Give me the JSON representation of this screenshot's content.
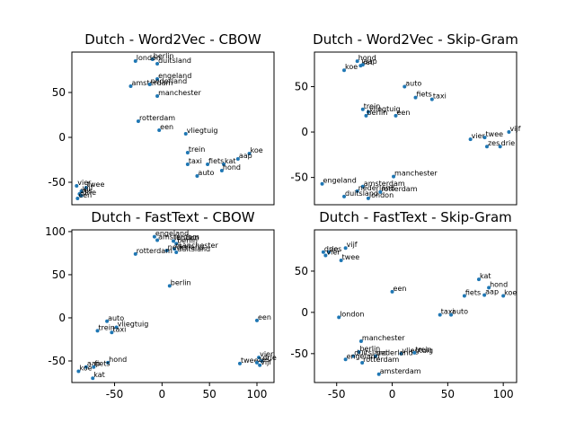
{
  "chart_data": [
    {
      "type": "scatter",
      "title": "Dutch - Word2Vec - CBOW",
      "xlabel": "",
      "ylabel": "",
      "xlim": [
        -95,
        118
      ],
      "ylim": [
        -75,
        95
      ],
      "xticks": [],
      "yticks": [
        50,
        0,
        -50
      ],
      "color": "#1f77b4",
      "points": [
        {
          "label": "berlin",
          "x": -10,
          "y": 87
        },
        {
          "label": "london",
          "x": -28,
          "y": 85
        },
        {
          "label": "duitsland",
          "x": -5,
          "y": 82
        },
        {
          "label": "engeland",
          "x": -5,
          "y": 65
        },
        {
          "label": "amsterdam",
          "x": -33,
          "y": 57
        },
        {
          "label": "nederland",
          "x": -13,
          "y": 59
        },
        {
          "label": "manchester",
          "x": -5,
          "y": 46
        },
        {
          "label": "rotterdam",
          "x": -25,
          "y": 18
        },
        {
          "label": "een",
          "x": -3,
          "y": 8
        },
        {
          "label": "vliegtuig",
          "x": 25,
          "y": 4
        },
        {
          "label": "trein",
          "x": 27,
          "y": -17
        },
        {
          "label": "koe",
          "x": 92,
          "y": -18
        },
        {
          "label": "aap",
          "x": 80,
          "y": -24
        },
        {
          "label": "taxi",
          "x": 27,
          "y": -30
        },
        {
          "label": "fiets",
          "x": 48,
          "y": -30
        },
        {
          "label": "kat",
          "x": 65,
          "y": -30
        },
        {
          "label": "hond",
          "x": 63,
          "y": -37
        },
        {
          "label": "auto",
          "x": 37,
          "y": -43
        },
        {
          "label": "vier",
          "x": -90,
          "y": -54
        },
        {
          "label": "twee",
          "x": -80,
          "y": -56
        },
        {
          "label": "vijf",
          "x": -85,
          "y": -60
        },
        {
          "label": "zes",
          "x": -87,
          "y": -63
        },
        {
          "label": "drie",
          "x": -85,
          "y": -65
        },
        {
          "label": "een2",
          "x": -89,
          "y": -68
        }
      ]
    },
    {
      "type": "scatter",
      "title": "Dutch - Word2Vec - Skip-Gram",
      "xlabel": "",
      "ylabel": "",
      "xlim": [
        -72,
        112
      ],
      "ylim": [
        -80,
        88
      ],
      "xticks": [],
      "yticks": [
        50,
        0,
        -50
      ],
      "color": "#1f77b4",
      "points": [
        {
          "label": "hond",
          "x": -33,
          "y": 78
        },
        {
          "label": "kat",
          "x": -30,
          "y": 73
        },
        {
          "label": "aap",
          "x": -28,
          "y": 74
        },
        {
          "label": "koe",
          "x": -45,
          "y": 68
        },
        {
          "label": "auto",
          "x": 10,
          "y": 50
        },
        {
          "label": "fiets",
          "x": 20,
          "y": 38
        },
        {
          "label": "taxi",
          "x": 35,
          "y": 36
        },
        {
          "label": "trein",
          "x": -28,
          "y": 25
        },
        {
          "label": "vliegtuig",
          "x": -23,
          "y": 22
        },
        {
          "label": "berlin",
          "x": -25,
          "y": 18
        },
        {
          "label": "een",
          "x": 2,
          "y": 18
        },
        {
          "label": "vijf",
          "x": 105,
          "y": 0
        },
        {
          "label": "vier",
          "x": 70,
          "y": -8
        },
        {
          "label": "twee",
          "x": 83,
          "y": -6
        },
        {
          "label": "zes",
          "x": 85,
          "y": -16
        },
        {
          "label": "drie",
          "x": 97,
          "y": -16
        },
        {
          "label": "manchester",
          "x": 0,
          "y": -49
        },
        {
          "label": "engeland",
          "x": -65,
          "y": -57
        },
        {
          "label": "amsterdam",
          "x": -28,
          "y": -60
        },
        {
          "label": "nederland",
          "x": -33,
          "y": -65
        },
        {
          "label": "rotterdam",
          "x": -12,
          "y": -66
        },
        {
          "label": "duitsland",
          "x": -45,
          "y": -71
        },
        {
          "label": "london",
          "x": -23,
          "y": -73
        }
      ]
    },
    {
      "type": "scatter",
      "title": "Dutch - FastText - CBOW",
      "xlabel": "",
      "ylabel": "",
      "xlim": [
        -95,
        118
      ],
      "ylim": [
        -75,
        102
      ],
      "xticks": [
        -50,
        0,
        50,
        100
      ],
      "yticks": [
        100,
        50,
        0,
        -50
      ],
      "color": "#1f77b4",
      "points": [
        {
          "label": "engeland",
          "x": -8,
          "y": 94
        },
        {
          "label": "amsterdam",
          "x": -5,
          "y": 90
        },
        {
          "label": "london",
          "x": 12,
          "y": 89
        },
        {
          "label": "berlin",
          "x": 15,
          "y": 86
        },
        {
          "label": "manchester",
          "x": 13,
          "y": 80
        },
        {
          "label": "nederland",
          "x": 5,
          "y": 78
        },
        {
          "label": "duitsland",
          "x": 15,
          "y": 76
        },
        {
          "label": "rotterdam",
          "x": -28,
          "y": 74
        },
        {
          "label": "berlin2",
          "x": 8,
          "y": 37
        },
        {
          "label": "een",
          "x": 100,
          "y": -3
        },
        {
          "label": "auto",
          "x": -58,
          "y": -4
        },
        {
          "label": "vliegtuig",
          "x": -48,
          "y": -11
        },
        {
          "label": "trein",
          "x": -68,
          "y": -15
        },
        {
          "label": "taxi",
          "x": -53,
          "y": -17
        },
        {
          "label": "hond",
          "x": -57,
          "y": -52
        },
        {
          "label": "aap",
          "x": -80,
          "y": -57
        },
        {
          "label": "fiets",
          "x": -72,
          "y": -57
        },
        {
          "label": "koe",
          "x": -88,
          "y": -62
        },
        {
          "label": "kat",
          "x": -73,
          "y": -70
        },
        {
          "label": "vier",
          "x": 102,
          "y": -46
        },
        {
          "label": "drie",
          "x": 105,
          "y": -50
        },
        {
          "label": "twee",
          "x": 82,
          "y": -53
        },
        {
          "label": "zes",
          "x": 100,
          "y": -52
        },
        {
          "label": "vijf",
          "x": 103,
          "y": -55
        }
      ]
    },
    {
      "type": "scatter",
      "title": "Dutch - FastText - Skip-Gram",
      "xlabel": "",
      "ylabel": "",
      "xlim": [
        -70,
        112
      ],
      "ylim": [
        -85,
        100
      ],
      "xticks": [
        -50,
        0,
        50,
        100
      ],
      "yticks": [
        50,
        0,
        -50
      ],
      "color": "#1f77b4",
      "points": [
        {
          "label": "vijf",
          "x": -42,
          "y": 78
        },
        {
          "label": "drie",
          "x": -62,
          "y": 73
        },
        {
          "label": "zes",
          "x": -57,
          "y": 73
        },
        {
          "label": "vier",
          "x": -60,
          "y": 69
        },
        {
          "label": "twee",
          "x": -46,
          "y": 63
        },
        {
          "label": "kat",
          "x": 78,
          "y": 40
        },
        {
          "label": "hond",
          "x": 87,
          "y": 30
        },
        {
          "label": "fiets",
          "x": 65,
          "y": 20
        },
        {
          "label": "aap",
          "x": 83,
          "y": 21
        },
        {
          "label": "koe",
          "x": 100,
          "y": 20
        },
        {
          "label": "een",
          "x": 0,
          "y": 25
        },
        {
          "label": "london",
          "x": -48,
          "y": -6
        },
        {
          "label": "taxi",
          "x": 43,
          "y": -3
        },
        {
          "label": "auto",
          "x": 53,
          "y": -3
        },
        {
          "label": "manchester",
          "x": -28,
          "y": -35
        },
        {
          "label": "berlin",
          "x": -30,
          "y": -48
        },
        {
          "label": "vliegtuig",
          "x": 8,
          "y": -50
        },
        {
          "label": "trein",
          "x": 20,
          "y": -49
        },
        {
          "label": "duitsland",
          "x": -35,
          "y": -53
        },
        {
          "label": "nederland",
          "x": -15,
          "y": -53
        },
        {
          "label": "engeland",
          "x": -42,
          "y": -57
        },
        {
          "label": "rotterdam",
          "x": -27,
          "y": -61
        },
        {
          "label": "amsterdam",
          "x": -12,
          "y": -75
        }
      ]
    }
  ]
}
